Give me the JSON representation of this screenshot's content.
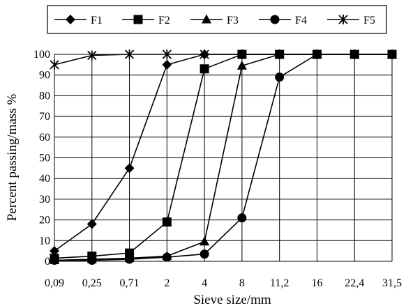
{
  "chart_data": {
    "type": "line",
    "title": "",
    "xlabel": "Sieve size/mm",
    "ylabel": "Percent passing/mass %",
    "categories": [
      "0,09",
      "0,25",
      "0,71",
      "2",
      "4",
      "8",
      "11,2",
      "16",
      "22,4",
      "31,5"
    ],
    "ylim": [
      0,
      100
    ],
    "yticks": [
      0,
      10,
      20,
      30,
      40,
      50,
      60,
      70,
      80,
      90,
      100
    ],
    "grid": "on",
    "legend_position": "top",
    "series": [
      {
        "name": "F1",
        "marker": "diamond",
        "values": [
          5,
          18,
          45,
          95,
          100,
          100,
          100,
          100,
          100,
          100
        ]
      },
      {
        "name": "F2",
        "marker": "square",
        "values": [
          1.5,
          2.5,
          4,
          19,
          93,
          100,
          100,
          100,
          100,
          100
        ]
      },
      {
        "name": "F3",
        "marker": "triangle",
        "values": [
          0.5,
          1,
          1.5,
          2.5,
          9.5,
          94.5,
          100,
          100,
          100,
          100
        ]
      },
      {
        "name": "F4",
        "marker": "circle",
        "values": [
          0.5,
          0.5,
          1,
          2,
          3.5,
          21,
          89,
          100,
          100,
          100
        ]
      },
      {
        "name": "F5",
        "marker": "asterisk",
        "values": [
          95,
          99.5,
          100,
          100,
          100,
          100,
          100,
          100,
          100,
          100
        ]
      }
    ]
  }
}
